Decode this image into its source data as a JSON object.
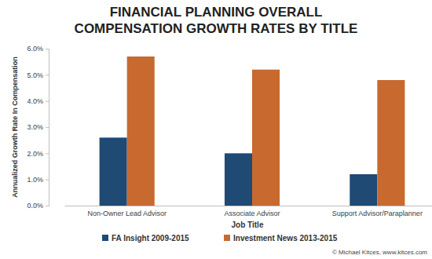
{
  "chart_data": {
    "type": "bar",
    "title": [
      "FINANCIAL PLANNING OVERALL",
      "COMPENSATION GROWTH RATES BY TITLE"
    ],
    "x_label": "Job Title",
    "y_label": "Annualized Growth Rate In Compensation",
    "categories": [
      "Non-Owner Lead Advisor",
      "Associate Advisor",
      "Support Advisor/Paraplanner"
    ],
    "series": [
      {
        "name": "FA Insight 2009-2015",
        "color": "#1f4a73",
        "values": [
          2.6,
          2.0,
          1.2
        ]
      },
      {
        "name": "Investment News 2013-2015",
        "color": "#c8692f",
        "values": [
          5.7,
          5.2,
          4.8
        ]
      }
    ],
    "ylim": [
      0,
      6
    ],
    "yticks": [
      {
        "value": 0,
        "label": "0.0%"
      },
      {
        "value": 1,
        "label": "1.0%"
      },
      {
        "value": 2,
        "label": "2.0%"
      },
      {
        "value": 3,
        "label": "3.0%"
      },
      {
        "value": 4,
        "label": "4.0%"
      },
      {
        "value": 5,
        "label": "5.0%"
      },
      {
        "value": 6,
        "label": "6.0%"
      }
    ],
    "grid": false,
    "legend": "bottom",
    "annotations": [
      "© Michael Kitces, www.kitces.com"
    ]
  }
}
